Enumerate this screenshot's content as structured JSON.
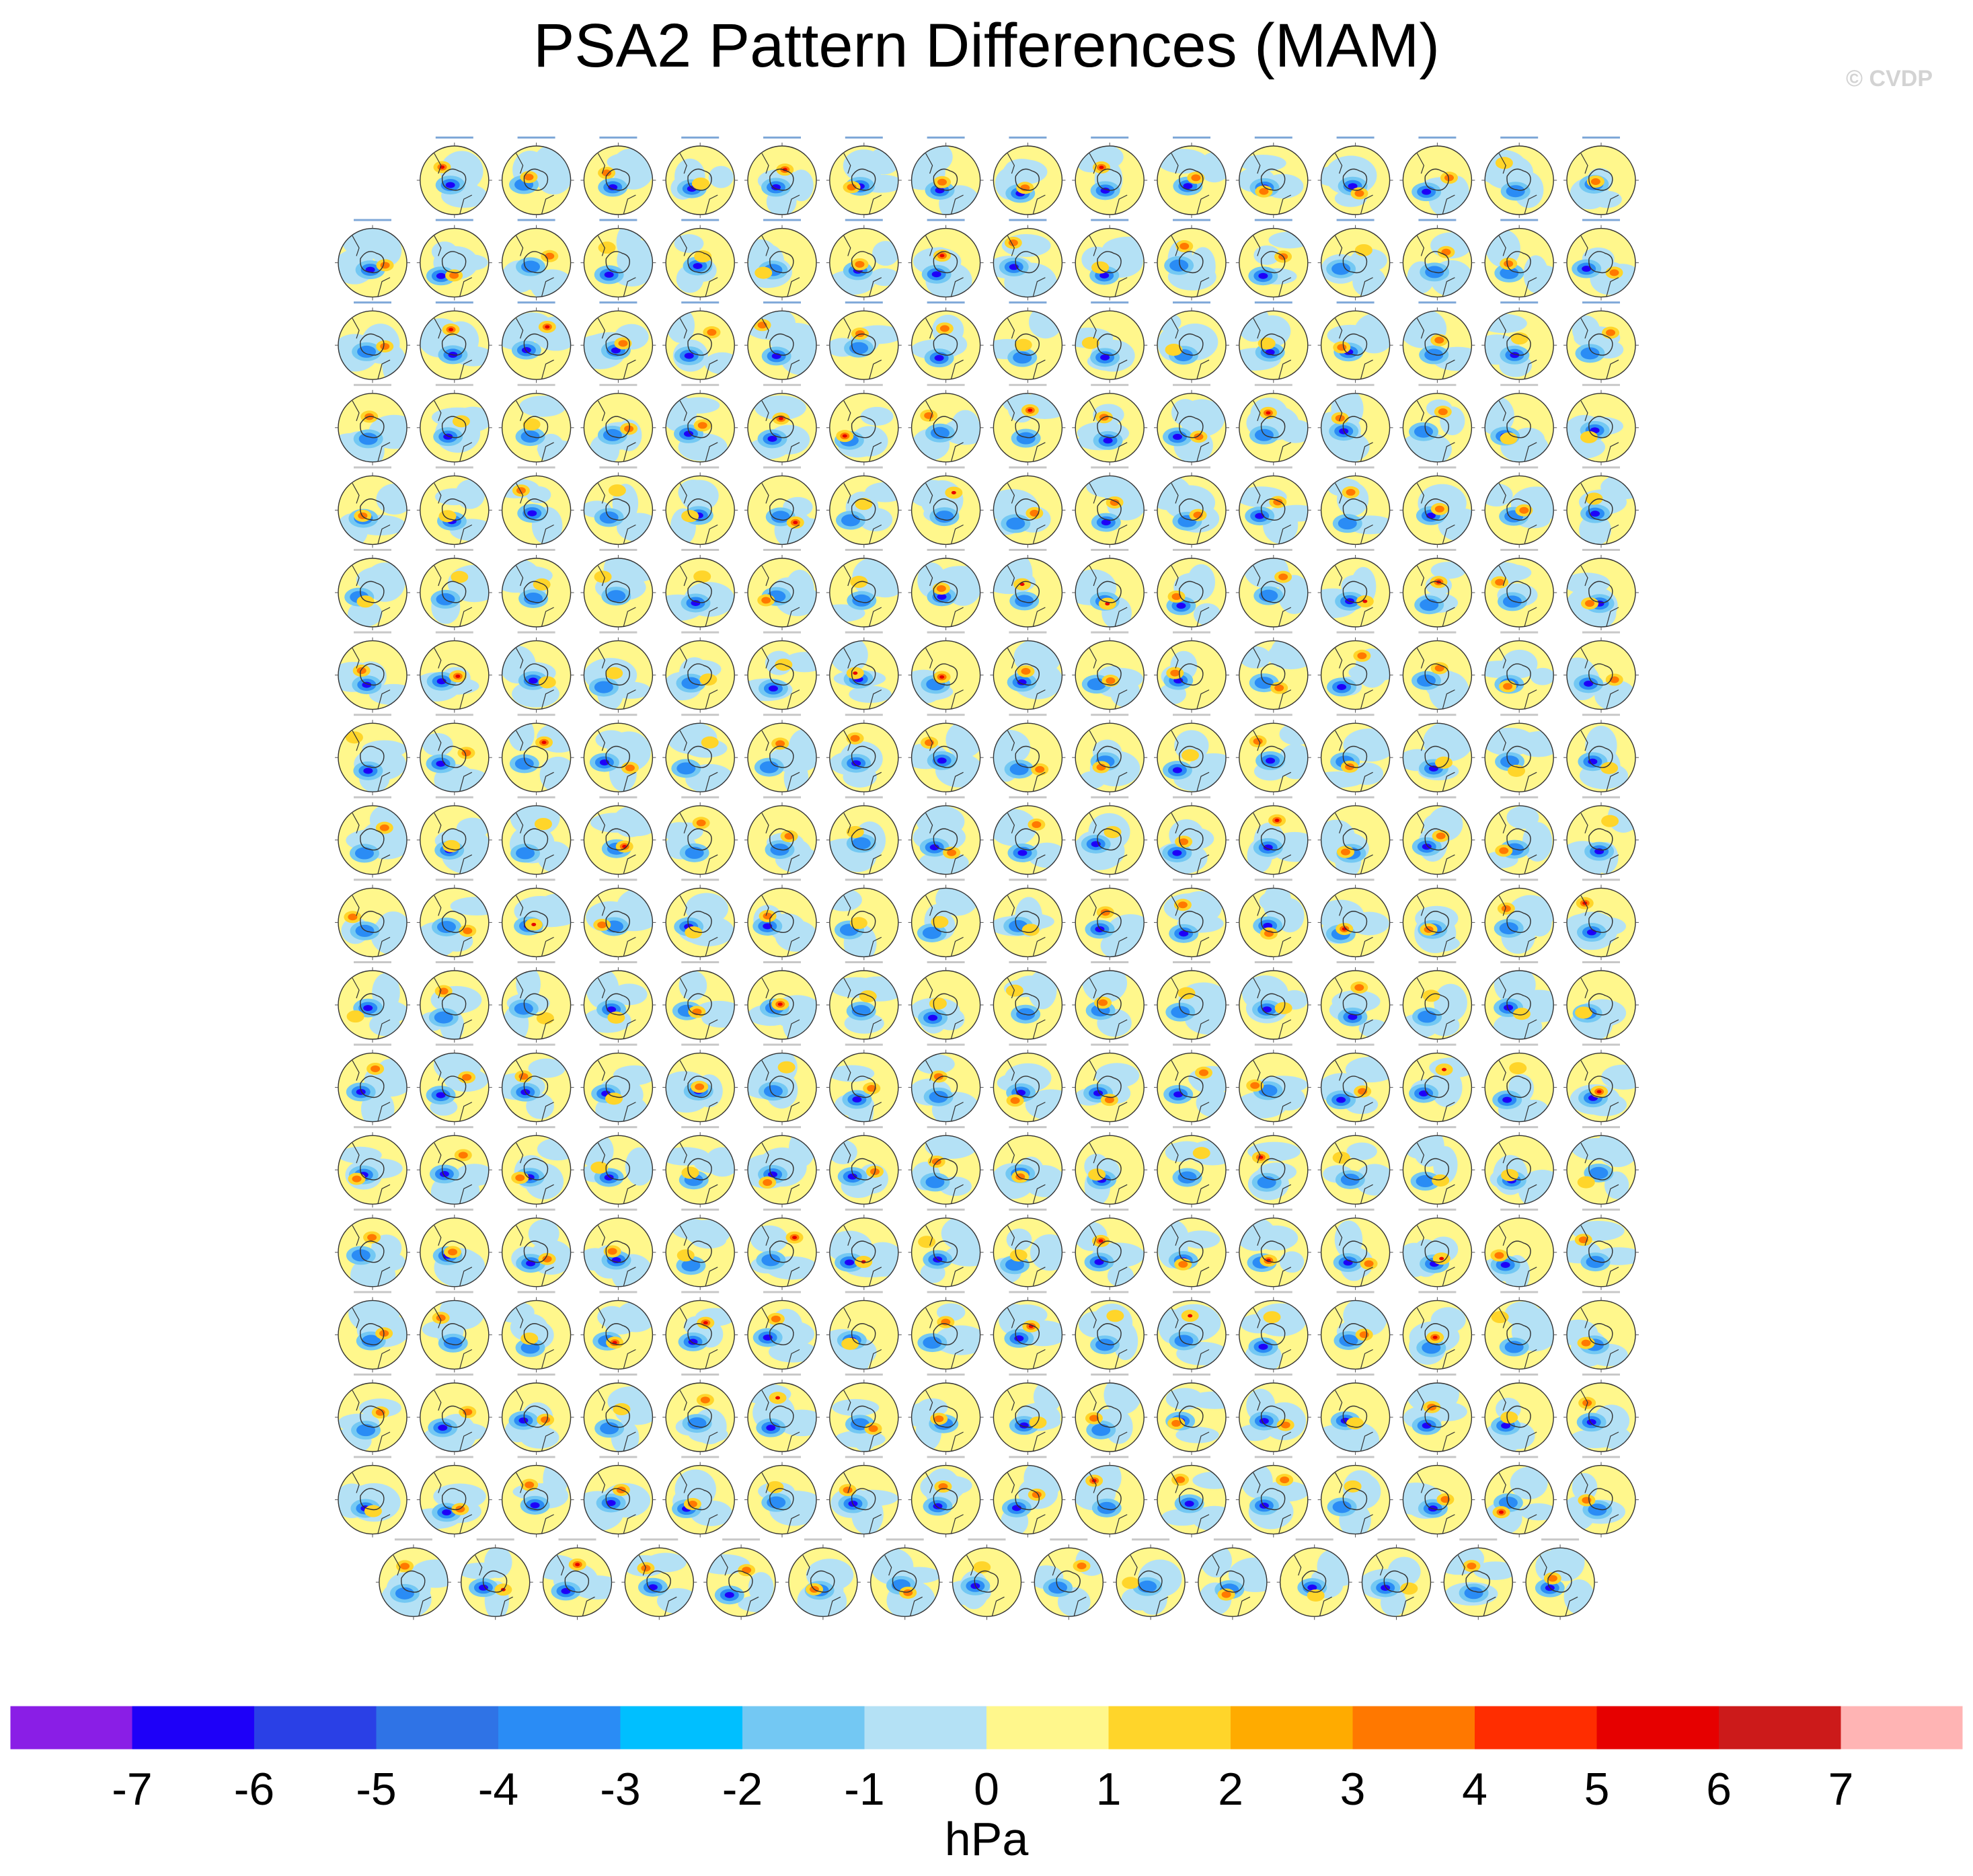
{
  "title": "PSA2 Pattern Differences (MAM)",
  "credit": "© CVDP",
  "chart_data": {
    "type": "heatmap",
    "title": "PSA2 Pattern Differences (MAM)",
    "description_layout": "grid",
    "panel_rows": [
      {
        "count": 15,
        "first_column": 2
      },
      {
        "count": 16,
        "first_column": 1
      },
      {
        "count": 16,
        "first_column": 1
      },
      {
        "count": 16,
        "first_column": 1
      },
      {
        "count": 16,
        "first_column": 1
      },
      {
        "count": 16,
        "first_column": 1
      },
      {
        "count": 16,
        "first_column": 1
      },
      {
        "count": 16,
        "first_column": 1
      },
      {
        "count": 16,
        "first_column": 1
      },
      {
        "count": 16,
        "first_column": 1
      },
      {
        "count": 16,
        "first_column": 1
      },
      {
        "count": 16,
        "first_column": 1
      },
      {
        "count": 16,
        "first_column": 1
      },
      {
        "count": 16,
        "first_column": 1
      },
      {
        "count": 16,
        "first_column": 1
      },
      {
        "count": 16,
        "first_column": 1
      },
      {
        "count": 16,
        "first_column": 1
      },
      {
        "count": 15,
        "first_column": 1.5
      }
    ],
    "colorbar": {
      "label": "hPa",
      "ticks": [
        "-7",
        "-6",
        "-5",
        "-4",
        "-3",
        "-2",
        "-1",
        "0",
        "1",
        "2",
        "3",
        "4",
        "5",
        "6",
        "7"
      ],
      "colors": [
        "#8a1ee6",
        "#1e00f8",
        "#2a40e6",
        "#2f73e6",
        "#2a8cf5",
        "#00bfff",
        "#73c8f3",
        "#b4e1f5",
        "#fff78c",
        "#ffd52a",
        "#ffab00",
        "#ff7800",
        "#ff2d00",
        "#e60000",
        "#cc1a1a",
        "#ffb4b4"
      ]
    }
  }
}
